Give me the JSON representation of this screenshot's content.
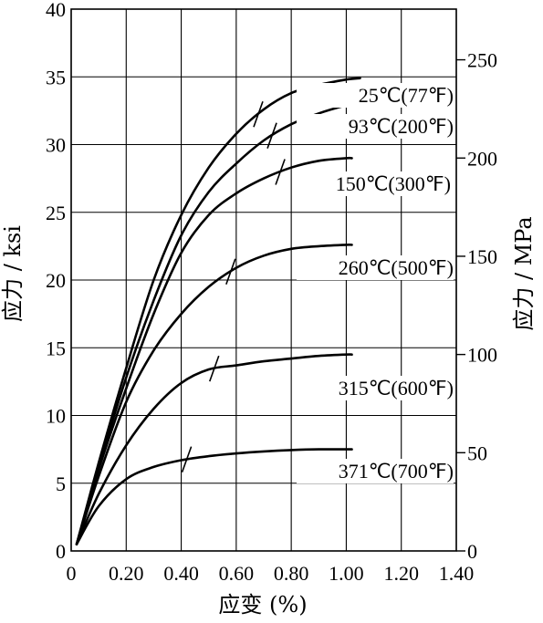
{
  "chart_data": {
    "type": "line",
    "xlabel": "应变 (%)",
    "ylabel_left": "应力 / ksi",
    "ylabel_right": "应力 / MPa",
    "xlim": [
      0,
      1.4
    ],
    "ylim_left": [
      0,
      40
    ],
    "ylim_right_mpa": [
      0,
      275.8
    ],
    "grid": true,
    "x_ticks": [
      "0",
      "0.20",
      "0.40",
      "0.60",
      "0.80",
      "1.00",
      "1.20",
      "1.40"
    ],
    "x_tick_values": [
      0,
      0.2,
      0.4,
      0.6,
      0.8,
      1.0,
      1.2,
      1.4
    ],
    "y_left_ticks": [
      "0",
      "5",
      "10",
      "15",
      "20",
      "25",
      "30",
      "35",
      "40"
    ],
    "y_left_tick_values": [
      0,
      5,
      10,
      15,
      20,
      25,
      30,
      35,
      40
    ],
    "y_right_ticks": [
      "0",
      "50",
      "100",
      "150",
      "200",
      "250"
    ],
    "y_right_tick_values": [
      0,
      50,
      100,
      150,
      200,
      250
    ],
    "series": [
      {
        "name": "25℃(77℉)",
        "x": [
          0.02,
          0.1,
          0.2,
          0.3,
          0.4,
          0.5,
          0.6,
          0.7,
          0.8,
          0.9,
          1.0,
          1.05
        ],
        "y": [
          0.5,
          6.5,
          13.5,
          20.0,
          24.8,
          28.3,
          30.8,
          32.6,
          33.8,
          34.4,
          34.8,
          34.9
        ],
        "yield_mark": 0.68
      },
      {
        "name": "93℃(200℉)",
        "x": [
          0.02,
          0.1,
          0.2,
          0.3,
          0.4,
          0.5,
          0.6,
          0.7,
          0.8,
          0.9,
          1.0,
          1.05
        ],
        "y": [
          0.5,
          6.2,
          12.8,
          18.5,
          23.3,
          26.5,
          28.6,
          30.3,
          31.5,
          32.3,
          32.9,
          33.1
        ],
        "yield_mark": 0.73
      },
      {
        "name": "150℃(300℉)",
        "x": [
          0.02,
          0.1,
          0.2,
          0.3,
          0.4,
          0.5,
          0.6,
          0.7,
          0.8,
          0.9,
          1.0,
          1.02
        ],
        "y": [
          0.5,
          6.0,
          12.0,
          17.5,
          22.0,
          24.8,
          26.4,
          27.5,
          28.3,
          28.8,
          29.0,
          29.0
        ],
        "yield_mark": 0.76
      },
      {
        "name": "260℃(500℉)",
        "x": [
          0.02,
          0.1,
          0.2,
          0.3,
          0.4,
          0.5,
          0.6,
          0.7,
          0.8,
          0.9,
          1.0,
          1.02
        ],
        "y": [
          0.5,
          5.5,
          11.0,
          14.8,
          17.5,
          19.5,
          20.9,
          21.8,
          22.3,
          22.5,
          22.6,
          22.6
        ],
        "yield_mark": 0.58
      },
      {
        "name": "315℃(600℉)",
        "x": [
          0.02,
          0.1,
          0.2,
          0.3,
          0.4,
          0.5,
          0.6,
          0.7,
          0.8,
          0.9,
          1.0,
          1.02
        ],
        "y": [
          0.5,
          4.2,
          7.8,
          10.5,
          12.4,
          13.4,
          13.7,
          14.0,
          14.2,
          14.4,
          14.5,
          14.5
        ],
        "yield_mark": 0.52
      },
      {
        "name": "371℃(700℉)",
        "x": [
          0.02,
          0.1,
          0.2,
          0.3,
          0.4,
          0.5,
          0.6,
          0.7,
          0.8,
          0.9,
          1.0,
          1.02
        ],
        "y": [
          0.5,
          3.3,
          5.3,
          6.2,
          6.7,
          7.0,
          7.2,
          7.35,
          7.45,
          7.5,
          7.5,
          7.5
        ],
        "yield_mark": 0.42
      }
    ]
  }
}
